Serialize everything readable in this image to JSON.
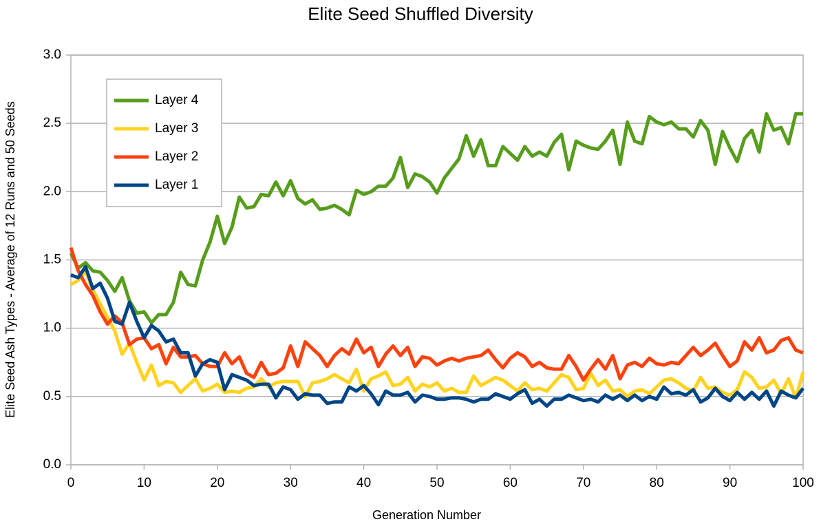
{
  "chart_data": {
    "type": "line",
    "title": "Elite Seed Shuffled Diversity",
    "xlabel": "Generation Number",
    "ylabel": "Elite Seed Ash Types  -  Average of 12 Runs and 50 Seeds",
    "x": [
      0,
      1,
      2,
      3,
      4,
      5,
      6,
      7,
      8,
      9,
      10,
      11,
      12,
      13,
      14,
      15,
      16,
      17,
      18,
      19,
      20,
      21,
      22,
      23,
      24,
      25,
      26,
      27,
      28,
      29,
      30,
      31,
      32,
      33,
      34,
      35,
      36,
      37,
      38,
      39,
      40,
      41,
      42,
      43,
      44,
      45,
      46,
      47,
      48,
      49,
      50,
      51,
      52,
      53,
      54,
      55,
      56,
      57,
      58,
      59,
      60,
      61,
      62,
      63,
      64,
      65,
      66,
      67,
      68,
      69,
      70,
      71,
      72,
      73,
      74,
      75,
      76,
      77,
      78,
      79,
      80,
      81,
      82,
      83,
      84,
      85,
      86,
      87,
      88,
      89,
      90,
      91,
      92,
      93,
      94,
      95,
      96,
      97,
      98,
      99,
      100
    ],
    "xlim": [
      0,
      100
    ],
    "xticks": [
      0,
      10,
      20,
      30,
      40,
      50,
      60,
      70,
      80,
      90,
      100
    ],
    "ylim": [
      0,
      3
    ],
    "yticks": [
      {
        "value": 0,
        "label": "0.0"
      },
      0.5,
      {
        "value": 1,
        "label": "1.0"
      },
      1.5,
      {
        "value": 2,
        "label": "2.0"
      },
      2.5,
      {
        "value": 3,
        "label": "3.0"
      }
    ],
    "grid": true,
    "legend": "upper left",
    "series": [
      {
        "name": "Layer 4",
        "color": "#579d1c",
        "values": [
          1.55,
          1.44,
          1.48,
          1.42,
          1.41,
          1.35,
          1.27,
          1.37,
          1.2,
          1.11,
          1.12,
          1.04,
          1.1,
          1.1,
          1.19,
          1.41,
          1.32,
          1.31,
          1.5,
          1.63,
          1.82,
          1.62,
          1.74,
          1.96,
          1.88,
          1.89,
          1.98,
          1.97,
          2.07,
          1.97,
          2.08,
          1.95,
          1.91,
          1.94,
          1.87,
          1.88,
          1.9,
          1.87,
          1.83,
          2.01,
          1.98,
          2.0,
          2.04,
          2.04,
          2.1,
          2.25,
          2.03,
          2.13,
          2.11,
          2.07,
          1.99,
          2.1,
          2.17,
          2.24,
          2.41,
          2.26,
          2.38,
          2.19,
          2.19,
          2.33,
          2.28,
          2.23,
          2.33,
          2.26,
          2.29,
          2.26,
          2.36,
          2.42,
          2.16,
          2.37,
          2.34,
          2.32,
          2.31,
          2.37,
          2.45,
          2.2,
          2.51,
          2.37,
          2.35,
          2.55,
          2.51,
          2.49,
          2.51,
          2.46,
          2.46,
          2.4,
          2.52,
          2.45,
          2.2,
          2.44,
          2.32,
          2.22,
          2.39,
          2.45,
          2.29,
          2.57,
          2.45,
          2.47,
          2.35,
          2.57,
          2.57
        ]
      },
      {
        "name": "Layer 3",
        "color": "#ffd320",
        "values": [
          1.32,
          1.35,
          1.42,
          1.28,
          1.18,
          1.08,
          0.98,
          0.81,
          0.89,
          0.75,
          0.62,
          0.73,
          0.58,
          0.61,
          0.6,
          0.53,
          0.58,
          0.63,
          0.54,
          0.56,
          0.59,
          0.53,
          0.54,
          0.53,
          0.56,
          0.57,
          0.63,
          0.57,
          0.6,
          0.61,
          0.61,
          0.61,
          0.5,
          0.6,
          0.61,
          0.63,
          0.66,
          0.63,
          0.6,
          0.7,
          0.54,
          0.63,
          0.65,
          0.68,
          0.58,
          0.59,
          0.64,
          0.54,
          0.59,
          0.57,
          0.6,
          0.54,
          0.56,
          0.53,
          0.53,
          0.65,
          0.58,
          0.61,
          0.64,
          0.62,
          0.58,
          0.54,
          0.6,
          0.55,
          0.56,
          0.54,
          0.6,
          0.66,
          0.64,
          0.55,
          0.56,
          0.67,
          0.58,
          0.62,
          0.54,
          0.55,
          0.5,
          0.54,
          0.55,
          0.52,
          0.57,
          0.62,
          0.63,
          0.6,
          0.56,
          0.54,
          0.64,
          0.56,
          0.57,
          0.53,
          0.51,
          0.55,
          0.68,
          0.64,
          0.56,
          0.57,
          0.62,
          0.52,
          0.63,
          0.49,
          0.68
        ]
      },
      {
        "name": "Layer 2",
        "color": "#ff420e",
        "values": [
          1.59,
          1.42,
          1.32,
          1.24,
          1.12,
          1.03,
          1.09,
          1.04,
          0.88,
          0.92,
          0.93,
          0.85,
          0.88,
          0.74,
          0.86,
          0.79,
          0.79,
          0.8,
          0.74,
          0.72,
          0.72,
          0.82,
          0.74,
          0.79,
          0.67,
          0.64,
          0.75,
          0.66,
          0.67,
          0.71,
          0.87,
          0.72,
          0.9,
          0.85,
          0.8,
          0.72,
          0.8,
          0.85,
          0.81,
          0.92,
          0.82,
          0.86,
          0.72,
          0.81,
          0.87,
          0.8,
          0.86,
          0.72,
          0.79,
          0.78,
          0.73,
          0.76,
          0.78,
          0.76,
          0.78,
          0.79,
          0.8,
          0.84,
          0.77,
          0.71,
          0.78,
          0.82,
          0.79,
          0.72,
          0.75,
          0.71,
          0.7,
          0.7,
          0.8,
          0.72,
          0.62,
          0.7,
          0.77,
          0.7,
          0.8,
          0.63,
          0.73,
          0.75,
          0.72,
          0.78,
          0.74,
          0.73,
          0.75,
          0.74,
          0.8,
          0.86,
          0.8,
          0.84,
          0.89,
          0.8,
          0.72,
          0.76,
          0.9,
          0.84,
          0.93,
          0.82,
          0.84,
          0.91,
          0.93,
          0.84,
          0.82
        ]
      },
      {
        "name": "Layer 1",
        "color": "#004586",
        "values": [
          1.39,
          1.37,
          1.45,
          1.29,
          1.33,
          1.22,
          1.05,
          1.03,
          1.19,
          1.05,
          0.93,
          1.02,
          0.98,
          0.9,
          0.92,
          0.82,
          0.82,
          0.65,
          0.74,
          0.77,
          0.75,
          0.55,
          0.66,
          0.64,
          0.62,
          0.58,
          0.59,
          0.59,
          0.49,
          0.57,
          0.55,
          0.48,
          0.52,
          0.51,
          0.51,
          0.45,
          0.46,
          0.46,
          0.57,
          0.54,
          0.58,
          0.52,
          0.44,
          0.54,
          0.51,
          0.51,
          0.53,
          0.46,
          0.51,
          0.5,
          0.48,
          0.48,
          0.49,
          0.49,
          0.48,
          0.46,
          0.48,
          0.48,
          0.52,
          0.5,
          0.48,
          0.52,
          0.55,
          0.45,
          0.48,
          0.43,
          0.48,
          0.48,
          0.51,
          0.49,
          0.47,
          0.48,
          0.46,
          0.51,
          0.48,
          0.51,
          0.47,
          0.51,
          0.47,
          0.5,
          0.48,
          0.57,
          0.52,
          0.53,
          0.51,
          0.55,
          0.46,
          0.49,
          0.56,
          0.5,
          0.47,
          0.53,
          0.48,
          0.53,
          0.48,
          0.54,
          0.43,
          0.54,
          0.51,
          0.49,
          0.56
        ]
      }
    ]
  }
}
